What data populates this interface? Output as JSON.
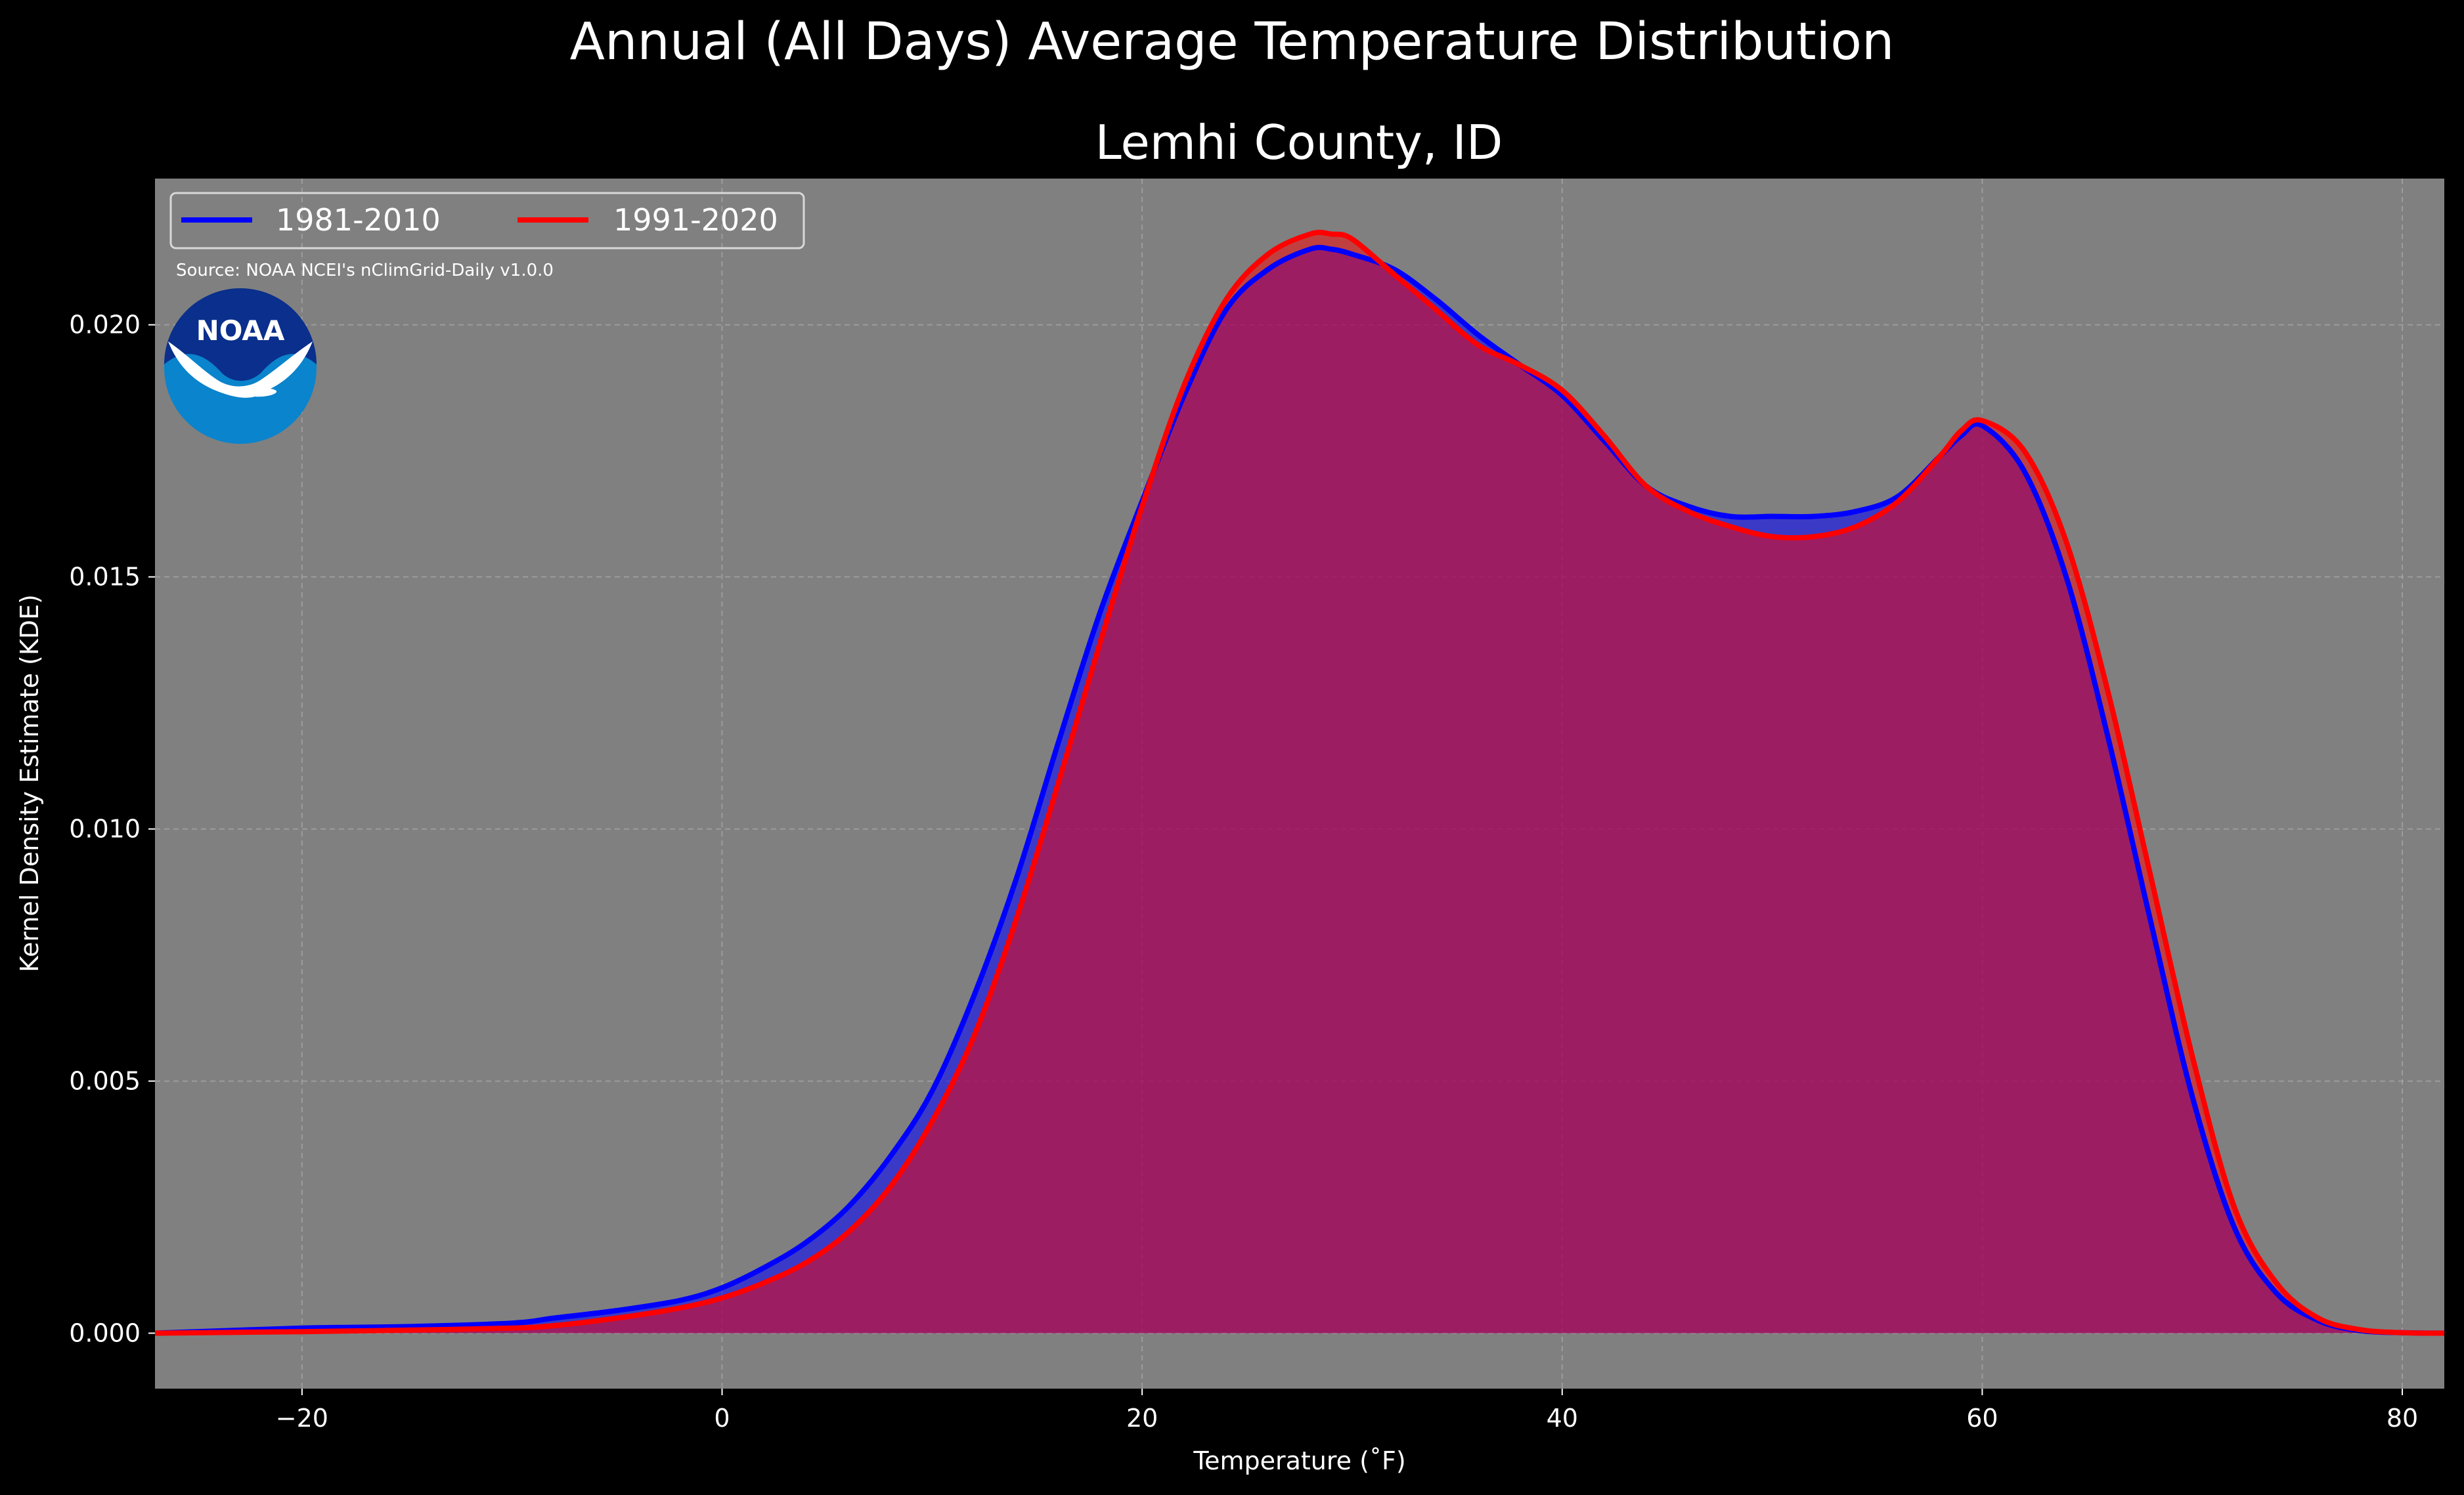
{
  "chart_data": {
    "type": "area",
    "title": "Annual (All Days) Average Temperature Distribution",
    "subtitle": "Lemhi County, ID",
    "xlabel": "Temperature (˚F)",
    "ylabel": "Kernel Density Estimate (KDE)",
    "xlim": [
      -27,
      82
    ],
    "ylim": [
      -0.0011,
      0.0229
    ],
    "xticks": [
      -20,
      0,
      20,
      40,
      60,
      80
    ],
    "xtick_labels": [
      "−20",
      "0",
      "20",
      "40",
      "60",
      "80"
    ],
    "yticks": [
      0.0,
      0.005,
      0.01,
      0.015,
      0.02
    ],
    "ytick_labels": [
      "0.000",
      "0.005",
      "0.010",
      "0.015",
      "0.020"
    ],
    "grid": true,
    "legend_position": "top-left",
    "source_note": "Source: NOAA NCEI's nClimGrid-Daily v1.0.0",
    "logo_text": "NOAA",
    "colors": {
      "background": "#000000",
      "plot_background": "#808080",
      "grid": "#b0b0b0",
      "series_1981_2010": "#0000ff",
      "series_1991_2020": "#ff0000",
      "fill_1981_2010": "#0000ff",
      "fill_1991_2020": "#ff0000",
      "logo_blue_dark": "#0a2f8c",
      "logo_blue_light": "#0a84cc"
    },
    "x": [
      -27,
      -20,
      -15,
      -10,
      -8,
      -5,
      -2,
      0,
      2,
      4,
      6,
      8,
      10,
      12,
      14,
      16,
      18,
      20,
      22,
      24,
      26,
      28,
      29,
      30,
      32,
      34,
      36,
      38,
      40,
      42,
      44,
      46,
      48,
      50,
      52,
      54,
      56,
      58,
      59,
      60,
      62,
      64,
      66,
      68,
      70,
      72,
      74,
      76,
      78,
      80,
      82
    ],
    "series": [
      {
        "name": "1981-2010",
        "color": "#0000ff",
        "values": [
          0.0,
          0.0001,
          0.00013,
          0.0002,
          0.0003,
          0.00045,
          0.00065,
          0.0009,
          0.0013,
          0.0018,
          0.0025,
          0.0035,
          0.0048,
          0.0067,
          0.009,
          0.0117,
          0.0143,
          0.0165,
          0.0186,
          0.0203,
          0.0211,
          0.0215,
          0.0215,
          0.0214,
          0.0211,
          0.0205,
          0.0198,
          0.0192,
          0.0186,
          0.0177,
          0.0168,
          0.0164,
          0.0162,
          0.0162,
          0.0162,
          0.0163,
          0.0166,
          0.0174,
          0.0178,
          0.018,
          0.0171,
          0.015,
          0.0118,
          0.0082,
          0.0047,
          0.0021,
          0.0008,
          0.00025,
          5e-05,
          1e-05,
          0.0
        ]
      },
      {
        "name": "1991-2020",
        "color": "#ff0000",
        "values": [
          0.0,
          3e-05,
          6e-05,
          0.0001,
          0.00015,
          0.0003,
          0.0005,
          0.0007,
          0.001,
          0.0014,
          0.002,
          0.0029,
          0.0042,
          0.0059,
          0.0082,
          0.0109,
          0.0137,
          0.0164,
          0.0188,
          0.0205,
          0.0214,
          0.0218,
          0.0218,
          0.0217,
          0.021,
          0.0203,
          0.0196,
          0.0192,
          0.0187,
          0.0178,
          0.0168,
          0.0163,
          0.016,
          0.0158,
          0.0158,
          0.016,
          0.0165,
          0.0174,
          0.0179,
          0.0181,
          0.0175,
          0.0157,
          0.0127,
          0.0091,
          0.0055,
          0.0025,
          0.001,
          0.0003,
          7e-05,
          1e-05,
          0.0
        ]
      }
    ]
  }
}
